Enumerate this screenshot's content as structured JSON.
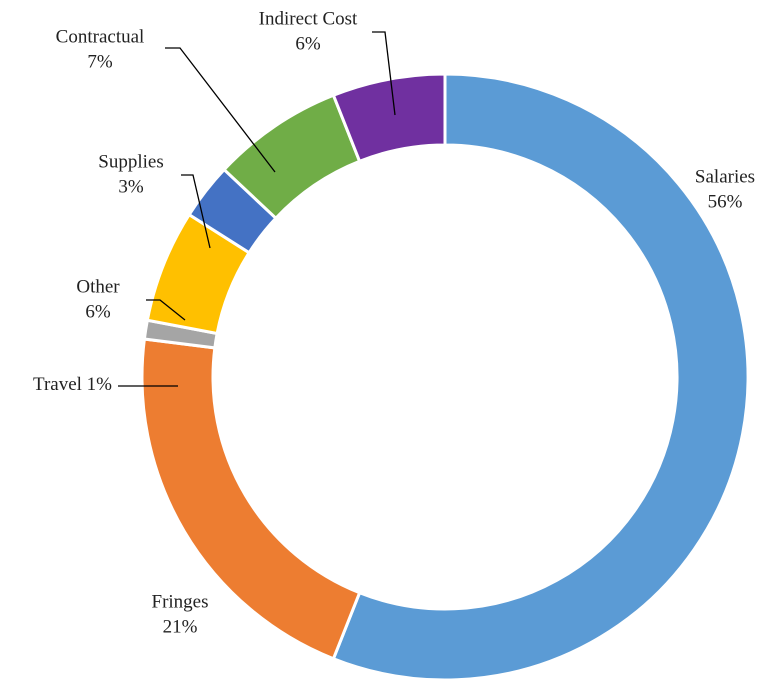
{
  "chart_data": {
    "type": "donut",
    "categories": [
      "Salaries",
      "Fringes",
      "Travel",
      "Other",
      "Supplies",
      "Contractual",
      "Indirect Cost"
    ],
    "values": [
      56,
      21,
      1,
      6,
      3,
      7,
      6
    ],
    "value_labels": [
      "56%",
      "21%",
      "1%",
      "6%",
      "3%",
      "7%",
      "6%"
    ],
    "colors": [
      "#5b9bd5",
      "#ed7d31",
      "#a5a5a5",
      "#ffc000",
      "#4472c4",
      "#70ad47",
      "#7030a0"
    ]
  }
}
